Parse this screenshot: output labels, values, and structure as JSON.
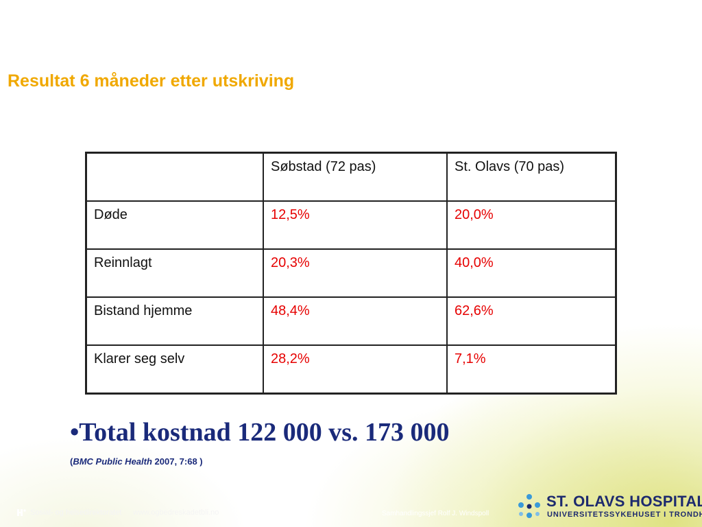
{
  "slide": {
    "title": "Resultat 6 måneder etter utskriving",
    "table": {
      "headers": [
        "",
        "Søbstad (72 pas)",
        "St. Olavs (70 pas)"
      ],
      "rows": [
        {
          "label": "Døde",
          "sobstad": "12,5%",
          "st_olavs": "20,0%"
        },
        {
          "label": "Reinnlagt",
          "sobstad": "20,3%",
          "st_olavs": "40,0%"
        },
        {
          "label": "Bistand hjemme",
          "sobstad": "48,4%",
          "st_olavs": "62,6%"
        },
        {
          "label": "Klarer seg selv",
          "sobstad": "28,2%",
          "st_olavs": "7,1%"
        }
      ]
    },
    "bullet": "•Total kostnad 122 000 vs. 173 000",
    "citation": {
      "open": "(",
      "journal": "BMC Public Health",
      "rest": " 2007, 7:68 )"
    }
  },
  "footer": {
    "directorate": "Sosial- og helsedirektoratet",
    "url": "www.ogbedreskadetbli.no",
    "date": "02.04.2014",
    "author": "Samhandlingssjef Rolf J. Windspoll"
  },
  "logo": {
    "name": "ST. OLAVS HOSPITAL",
    "subtitle": "UNIVERSITETSSYKEHUSET I TRONDHEIM"
  },
  "colors": {
    "title": "#f0a800",
    "value_text": "#e60000",
    "bullet_text": "#1a2a7a",
    "logo_blue": "#1d2a6e",
    "logo_dots": "#3a9ad9"
  }
}
